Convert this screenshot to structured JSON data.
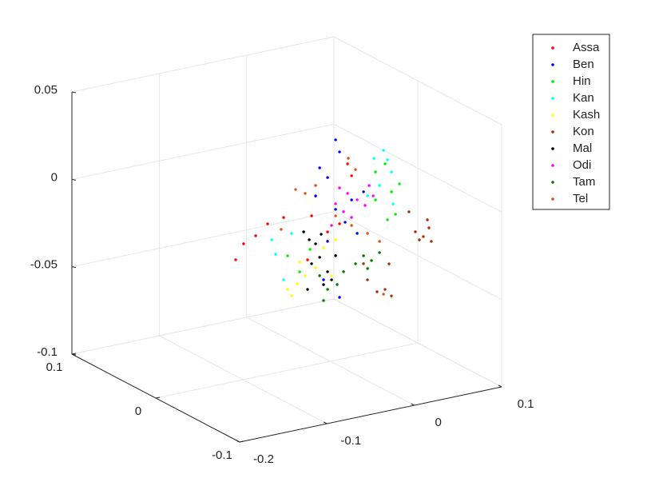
{
  "chart_data": {
    "type": "scatter3d",
    "xlim": [
      -0.2,
      0.1
    ],
    "ylim": [
      -0.1,
      0.1
    ],
    "zlim": [
      -0.1,
      0.05
    ],
    "xticks": [
      -0.2,
      -0.1,
      0,
      0.1
    ],
    "yticks": [
      -0.1,
      0,
      0.1
    ],
    "zticks": [
      -0.1,
      -0.05,
      0,
      0.05
    ],
    "grid": true,
    "legend": "upper right",
    "series": [
      {
        "name": "Assa",
        "color": "#ff0000",
        "x": [
          -0.1085,
          -0.0994,
          -0.0856,
          -0.0719,
          -0.0536,
          -0.0216,
          -0.0033,
          0.0104,
          0.0196,
          0.0242,
          -0.0262
        ],
        "y": [
          0,
          0,
          0,
          0,
          0,
          0,
          0,
          0,
          0,
          0,
          0
        ],
        "z": [
          -0.0305,
          -0.0223,
          -0.0192,
          -0.0138,
          -0.0121,
          -0.0145,
          -0.0256,
          -0.0224,
          0.0109,
          0.0036,
          -0.0392
        ]
      },
      {
        "name": "Ben",
        "color": "#0000ff",
        "x": [
          0.0059,
          0.0104,
          -0.0124,
          -0.0033,
          -0.017,
          0.0059,
          0.0168,
          0.0306,
          0.0242,
          -0.0033,
          0.0104,
          0.0379,
          -0.0079
        ],
        "y": [
          0,
          0,
          0,
          0,
          0,
          0,
          0,
          0,
          0,
          0,
          0,
          0,
          0
        ],
        "z": [
          0.0261,
          0.0187,
          0.012,
          0.0055,
          -0.0036,
          -0.0137,
          -0.0222,
          -0.03,
          -0.0102,
          -0.031,
          -0.0645,
          -0.007,
          -0.0525
        ]
      },
      {
        "name": "Hin",
        "color": "#00ee00",
        "x": [
          0.0516,
          0.0626,
          0.0699,
          0.0745,
          0.0653,
          0.0516,
          0.079,
          -0.049,
          -0.0353,
          -0.0234
        ],
        "y": [
          0,
          0,
          0,
          0,
          0,
          0,
          0,
          0,
          0,
          0
        ],
        "z": [
          0.0029,
          0.0064,
          -0.0104,
          -0.0237,
          -0.0259,
          -0.0131,
          -0.0068,
          -0.0345,
          -0.0451,
          -0.0335
        ]
      },
      {
        "name": "Kan",
        "color": "#00ffff",
        "x": [
          0.0608,
          0.0653,
          0.0699,
          0.0562,
          0.0498,
          0.0425,
          -0.0673,
          -0.0628,
          -0.0445,
          -0.0307,
          -0.0536,
          0.0717
        ],
        "y": [
          0,
          0,
          0,
          0,
          0,
          0,
          0,
          0,
          0,
          0,
          0,
          0
        ],
        "z": [
          0.0143,
          0.0084,
          0.001,
          -0.0053,
          0.0109,
          -0.0098,
          -0.0234,
          -0.0321,
          -0.0222,
          -0.0227,
          -0.0477,
          -0.0175
        ]
      },
      {
        "name": "Kash",
        "color": "#ffff00",
        "x": [
          -0.0445,
          -0.0381,
          -0.0289,
          -0.017,
          -0.0079,
          0.0013,
          -0.0353,
          0.0059,
          -0.049
        ],
        "y": [
          0,
          0,
          0,
          0,
          0,
          0,
          0,
          0,
          0
        ],
        "z": [
          -0.0578,
          -0.0516,
          -0.048,
          -0.0447,
          -0.0342,
          -0.0512,
          -0.0396,
          -0.0311,
          -0.0537
        ]
      },
      {
        "name": "Kon",
        "color": "#a0320a",
        "x": [
          0.0492,
          0.0584,
          0.0648,
          0.0675,
          0.0538,
          0.063,
          0.0419,
          -0.0056,
          0.0053,
          0.0145,
          0.0191,
          -0.0102,
          0.0218
        ],
        "y": [
          -0.05,
          -0.05,
          -0.05,
          -0.05,
          -0.05,
          -0.05,
          -0.05,
          -0.05,
          -0.05,
          -0.05,
          -0.05,
          -0.05,
          -0.05
        ],
        "z": [
          -0.0185,
          -0.0222,
          -0.0179,
          -0.0259,
          -0.0236,
          -0.0131,
          -0.0063,
          -0.0402,
          -0.0482,
          -0.0478,
          -0.0337,
          -0.0305,
          -0.0523
        ]
      },
      {
        "name": "Mal",
        "color": "#000000",
        "x": [
          -0.0307,
          -0.0243,
          -0.017,
          -0.0124,
          -0.0033,
          -0.0079,
          0.0013,
          0.0059,
          -0.0216,
          -0.0106,
          -0.0262
        ],
        "y": [
          0,
          0,
          0,
          0,
          0,
          0,
          0,
          0,
          0,
          0,
          0
        ],
        "z": [
          -0.0227,
          -0.0279,
          -0.031,
          -0.0392,
          -0.0484,
          -0.0553,
          -0.0535,
          -0.0402,
          -0.0419,
          -0.0262,
          -0.0561
        ]
      },
      {
        "name": "Odi",
        "color": "#ff00ff",
        "x": [
          0.0104,
          0.0196,
          0.0306,
          0.0397,
          0.0489,
          0.015,
          0.0242,
          0.0013,
          0.0443,
          0.0059
        ],
        "y": [
          0,
          0,
          0,
          0,
          0,
          0,
          0,
          0,
          0,
          0
        ],
        "z": [
          -0.0019,
          -0.006,
          -0.0108,
          -0.015,
          -0.0105,
          -0.016,
          -0.0202,
          -0.0224,
          -0.0041,
          -0.0105
        ]
      },
      {
        "name": "Tam",
        "color": "#007a00",
        "x": [
          0.0379,
          0.047,
          0.0562,
          0.0425,
          -0.0124,
          -0.0033,
          0.0077,
          0.015,
          0.0287,
          -0.0079
        ],
        "y": [
          0,
          0,
          0,
          0,
          0,
          0,
          0,
          0,
          0,
          0
        ],
        "z": [
          -0.0436,
          -0.0473,
          -0.0437,
          -0.0514,
          -0.0497,
          -0.0585,
          -0.0569,
          -0.0503,
          -0.0472,
          -0.0644
        ]
      },
      {
        "name": "Tel",
        "color": "#d95319",
        "x": [
          -0.0399,
          -0.0289,
          -0.017,
          0.0059,
          0.0242,
          0.0425,
          0.0562,
          -0.0564,
          0.0205,
          0.0287,
          0.0608
        ],
        "y": [
          0,
          0,
          0,
          0,
          0,
          0,
          0,
          0,
          0,
          0,
          0
        ],
        "z": [
          0.0025,
          -0.0009,
          0.0024,
          -0.0174,
          -0.0248,
          -0.0313,
          -0.0373,
          -0.0186,
          0.014,
          0.0067,
          -0.068
        ]
      }
    ]
  }
}
